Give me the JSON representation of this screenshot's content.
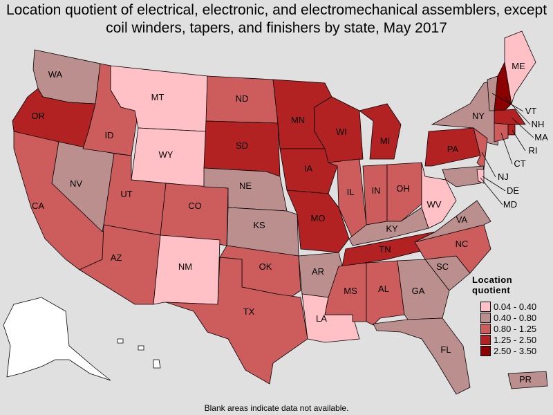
{
  "title_line1": "Location quotient of electrical, electronic, and electromechanical assemblers, except",
  "title_line2": "coil winders, tapers, and finishers by state, May 2017",
  "footnote": "Blank areas indicate data not available.",
  "legend": {
    "title": "Location quotient",
    "classes": [
      {
        "label": "0.04 - 0.40",
        "color": "#ffc0c6"
      },
      {
        "label": "0.40 - 0.80",
        "color": "#bc8f8f"
      },
      {
        "label": "0.80 - 1.25",
        "color": "#cd5c5c"
      },
      {
        "label": "1.25 - 2.50",
        "color": "#b22222"
      },
      {
        "label": "2.50 - 3.50",
        "color": "#8b0000"
      }
    ]
  },
  "no_data_color": "#ffffff",
  "states": [
    {
      "abbr": "WA",
      "class": 2
    },
    {
      "abbr": "OR",
      "class": 4
    },
    {
      "abbr": "CA",
      "class": 3
    },
    {
      "abbr": "NV",
      "class": 2
    },
    {
      "abbr": "ID",
      "class": 3
    },
    {
      "abbr": "MT",
      "class": 1
    },
    {
      "abbr": "WY",
      "class": 1
    },
    {
      "abbr": "UT",
      "class": 3
    },
    {
      "abbr": "AZ",
      "class": 3
    },
    {
      "abbr": "CO",
      "class": 3
    },
    {
      "abbr": "NM",
      "class": 1
    },
    {
      "abbr": "ND",
      "class": 3
    },
    {
      "abbr": "SD",
      "class": 4
    },
    {
      "abbr": "NE",
      "class": 2
    },
    {
      "abbr": "KS",
      "class": 2
    },
    {
      "abbr": "OK",
      "class": 3
    },
    {
      "abbr": "TX",
      "class": 3
    },
    {
      "abbr": "MN",
      "class": 4
    },
    {
      "abbr": "IA",
      "class": 4
    },
    {
      "abbr": "MO",
      "class": 4
    },
    {
      "abbr": "AR",
      "class": 2
    },
    {
      "abbr": "LA",
      "class": 1
    },
    {
      "abbr": "WI",
      "class": 4
    },
    {
      "abbr": "IL",
      "class": 3
    },
    {
      "abbr": "MI",
      "class": 4
    },
    {
      "abbr": "IN",
      "class": 3
    },
    {
      "abbr": "OH",
      "class": 3
    },
    {
      "abbr": "KY",
      "class": 2
    },
    {
      "abbr": "TN",
      "class": 4
    },
    {
      "abbr": "MS",
      "class": 3
    },
    {
      "abbr": "AL",
      "class": 3
    },
    {
      "abbr": "GA",
      "class": 2
    },
    {
      "abbr": "FL",
      "class": 2
    },
    {
      "abbr": "SC",
      "class": 2
    },
    {
      "abbr": "NC",
      "class": 3
    },
    {
      "abbr": "VA",
      "class": 2
    },
    {
      "abbr": "WV",
      "class": 1
    },
    {
      "abbr": "PA",
      "class": 4
    },
    {
      "abbr": "NY",
      "class": 2
    },
    {
      "abbr": "NJ",
      "class": 3
    },
    {
      "abbr": "MD",
      "class": 2
    },
    {
      "abbr": "DE",
      "class": 1
    },
    {
      "abbr": "VT",
      "class": 2
    },
    {
      "abbr": "NH",
      "class": 5
    },
    {
      "abbr": "ME",
      "class": 1
    },
    {
      "abbr": "MA",
      "class": 4
    },
    {
      "abbr": "CT",
      "class": 3
    },
    {
      "abbr": "RI",
      "class": 4
    },
    {
      "abbr": "PR",
      "class": 2
    },
    {
      "abbr": "AK",
      "class": 0
    },
    {
      "abbr": "HI",
      "class": 0
    }
  ]
}
